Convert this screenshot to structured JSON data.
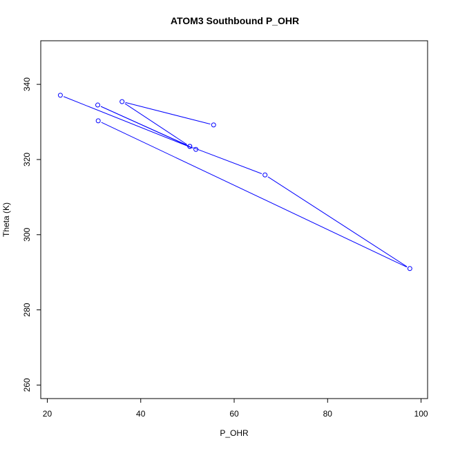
{
  "chart_data": {
    "type": "line",
    "title": "ATOM3 Southbound P_OHR",
    "xlabel": "P_OHR",
    "ylabel": "Theta (K)",
    "xlim": [
      20,
      100
    ],
    "ylim": [
      260,
      350
    ],
    "x_ticks": [
      20,
      40,
      60,
      80,
      100
    ],
    "y_ticks": [
      260,
      280,
      300,
      320,
      340
    ],
    "grid": false,
    "colors": {
      "series": "#0000ff",
      "axis": "#000000"
    },
    "series": [
      {
        "marker": "open-circle",
        "points": [
          {
            "x": 22.8,
            "y": 337.1
          },
          {
            "x": 51.8,
            "y": 322.7
          },
          {
            "x": 30.8,
            "y": 334.5
          },
          {
            "x": 50.5,
            "y": 323.5
          },
          {
            "x": 36.0,
            "y": 335.4
          },
          {
            "x": 55.6,
            "y": 329.2
          }
        ]
      },
      {
        "marker": "open-circle",
        "points": [
          {
            "x": 30.9,
            "y": 330.3
          },
          {
            "x": 97.6,
            "y": 291.0
          },
          {
            "x": 66.6,
            "y": 315.9
          },
          {
            "x": 50.5,
            "y": 323.5
          }
        ]
      }
    ]
  }
}
